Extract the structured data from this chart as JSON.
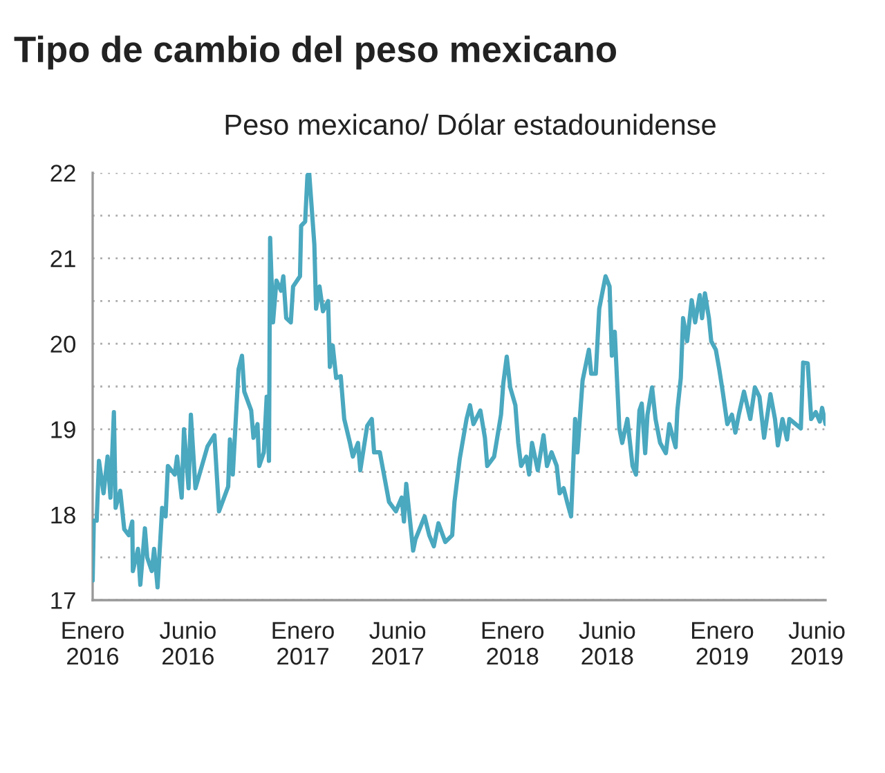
{
  "chart_data": {
    "type": "line",
    "title": "Tipo de cambio del peso mexicano",
    "subtitle": "Peso mexicano/ Dólar estadounidense",
    "x": [
      "2016-01-01",
      "2016-01-03",
      "2016-01-08",
      "2016-01-12",
      "2016-01-20",
      "2016-01-27",
      "2016-02-01",
      "2016-02-07",
      "2016-02-10",
      "2016-02-18",
      "2016-02-25",
      "2016-03-04",
      "2016-03-10",
      "2016-03-11",
      "2016-03-20",
      "2016-03-24",
      "2016-04-01",
      "2016-04-05",
      "2016-04-13",
      "2016-04-17",
      "2016-04-23",
      "2016-05-01",
      "2016-05-07",
      "2016-05-11",
      "2016-05-23",
      "2016-05-27",
      "2016-06-04",
      "2016-06-08",
      "2016-06-16",
      "2016-06-20",
      "2016-06-28",
      "2016-07-19",
      "2016-07-31",
      "2016-08-08",
      "2016-08-24",
      "2016-08-27",
      "2016-09-01",
      "2016-09-11",
      "2016-09-17",
      "2016-09-21",
      "2016-10-03",
      "2016-10-07",
      "2016-10-14",
      "2016-10-17",
      "2016-10-25",
      "2016-10-30",
      "2016-11-03",
      "2016-11-05",
      "2016-11-10",
      "2016-11-16",
      "2016-11-24",
      "2016-11-28",
      "2016-12-03",
      "2016-12-11",
      "2016-12-15",
      "2016-12-27",
      "2016-12-29",
      "2017-01-05",
      "2017-01-09",
      "2017-01-12",
      "2017-01-21",
      "2017-01-24",
      "2017-01-30",
      "2017-02-05",
      "2017-02-14",
      "2017-02-17",
      "2017-02-22",
      "2017-02-28",
      "2017-03-08",
      "2017-03-14",
      "2017-03-24",
      "2017-03-29",
      "2017-04-07",
      "2017-04-11",
      "2017-04-23",
      "2017-05-01",
      "2017-05-05",
      "2017-05-15",
      "2017-05-23",
      "2017-05-31",
      "2017-06-12",
      "2017-06-22",
      "2017-06-26",
      "2017-06-30",
      "2017-07-12",
      "2017-07-16",
      "2017-08-01",
      "2017-08-09",
      "2017-08-17",
      "2017-08-25",
      "2017-09-06",
      "2017-09-18",
      "2017-09-22",
      "2017-10-01",
      "2017-10-13",
      "2017-10-19",
      "2017-10-25",
      "2017-11-06",
      "2017-11-14",
      "2017-11-18",
      "2017-11-30",
      "2017-12-12",
      "2017-12-16",
      "2017-12-22",
      "2017-12-28",
      "2018-01-06",
      "2018-01-11",
      "2018-01-16",
      "2018-01-25",
      "2018-01-30",
      "2018-02-04",
      "2018-02-14",
      "2018-02-24",
      "2018-03-02",
      "2018-03-10",
      "2018-03-19",
      "2018-03-24",
      "2018-03-31",
      "2018-04-06",
      "2018-04-13",
      "2018-04-20",
      "2018-04-24",
      "2018-05-03",
      "2018-05-14",
      "2018-05-18",
      "2018-05-26",
      "2018-06-01",
      "2018-06-07",
      "2018-06-12",
      "2018-06-19",
      "2018-06-23",
      "2018-06-28",
      "2018-07-06",
      "2018-07-11",
      "2018-07-20",
      "2018-07-29",
      "2018-08-04",
      "2018-08-10",
      "2018-08-14",
      "2018-08-20",
      "2018-08-24",
      "2018-09-01",
      "2018-09-07",
      "2018-09-15",
      "2018-09-25",
      "2018-10-01",
      "2018-10-12",
      "2018-10-15",
      "2018-10-21",
      "2018-10-25",
      "2018-11-01",
      "2018-11-09",
      "2018-11-15",
      "2018-11-23",
      "2018-11-27",
      "2018-12-02",
      "2018-12-09",
      "2018-12-13",
      "2018-12-21",
      "2018-12-27",
      "2019-01-02",
      "2019-01-10",
      "2019-01-18",
      "2019-01-24",
      "2019-01-30",
      "2019-02-08",
      "2019-02-19",
      "2019-02-27",
      "2019-03-07",
      "2019-03-15",
      "2019-03-26",
      "2019-04-03",
      "2019-04-08",
      "2019-04-16",
      "2019-04-24",
      "2019-04-28",
      "2019-05-18",
      "2019-05-22",
      "2019-05-30",
      "2019-06-05",
      "2019-06-13",
      "2019-06-20",
      "2019-06-24",
      "2019-06-30"
    ],
    "series": [
      {
        "color": "#4aa8bf",
        "values": [
          17.23,
          17.93,
          17.93,
          18.63,
          18.25,
          18.68,
          18.2,
          19.2,
          18.08,
          18.28,
          17.83,
          17.76,
          17.92,
          17.34,
          17.6,
          17.18,
          17.84,
          17.5,
          17.34,
          17.6,
          17.15,
          18.08,
          17.98,
          18.57,
          18.47,
          18.68,
          18.2,
          19.0,
          18.31,
          19.17,
          18.31,
          18.8,
          18.93,
          18.04,
          18.33,
          18.88,
          18.47,
          19.7,
          19.86,
          19.44,
          19.22,
          18.9,
          19.06,
          18.57,
          18.73,
          19.38,
          18.63,
          21.24,
          20.25,
          20.74,
          20.62,
          20.79,
          20.3,
          20.25,
          20.67,
          20.79,
          21.38,
          21.43,
          21.97,
          22.0,
          21.16,
          20.41,
          20.67,
          20.38,
          20.5,
          19.73,
          19.98,
          19.6,
          19.62,
          19.12,
          18.84,
          18.68,
          18.84,
          18.52,
          19.04,
          19.12,
          18.73,
          18.73,
          18.44,
          18.15,
          18.04,
          18.2,
          17.92,
          18.36,
          17.58,
          17.71,
          17.98,
          17.76,
          17.63,
          17.9,
          17.68,
          17.76,
          18.15,
          18.65,
          19.12,
          19.28,
          19.06,
          19.22,
          18.9,
          18.57,
          18.68,
          19.17,
          19.54,
          19.85,
          19.49,
          19.28,
          18.84,
          18.57,
          18.68,
          18.47,
          18.84,
          18.52,
          18.93,
          18.57,
          18.73,
          18.57,
          18.25,
          18.31,
          18.15,
          17.98,
          19.12,
          18.73,
          19.57,
          19.93,
          19.65,
          19.65,
          20.41,
          20.62,
          20.79,
          20.67,
          19.86,
          20.14,
          19.01,
          18.84,
          19.12,
          18.57,
          18.47,
          19.22,
          19.3,
          18.72,
          19.17,
          19.49,
          19.12,
          18.84,
          18.72,
          19.06,
          18.79,
          19.22,
          19.6,
          20.3,
          20.03,
          20.51,
          20.25,
          20.57,
          20.3,
          20.59,
          20.3,
          20.03,
          19.93,
          19.7,
          19.44,
          19.06,
          19.17,
          18.96,
          19.17,
          19.44,
          19.12,
          19.49,
          19.38,
          18.9,
          19.41,
          19.12,
          18.81,
          19.12,
          18.88,
          19.12,
          19.01,
          19.78,
          19.77,
          19.12,
          19.2,
          19.09,
          19.25,
          19.06
        ]
      }
    ],
    "xlim": [
      "2016-01-01",
      "2019-06-30"
    ],
    "xticks": [
      {
        "value": "2016-01-01",
        "label": "Enero\n2016"
      },
      {
        "value": "2016-06-15",
        "label": "Junio\n2016"
      },
      {
        "value": "2017-01-01",
        "label": "Enero\n2017"
      },
      {
        "value": "2017-06-15",
        "label": "Junio\n2017"
      },
      {
        "value": "2018-01-01",
        "label": "Enero\n2018"
      },
      {
        "value": "2018-06-15",
        "label": "Junio\n2018"
      },
      {
        "value": "2019-01-01",
        "label": "Enero\n2019"
      },
      {
        "value": "2019-06-15",
        "label": "Junio\n2019"
      }
    ],
    "ylim": [
      17,
      22
    ],
    "yticks": [
      17,
      {
        "value": 17.5,
        "label": null
      },
      18,
      {
        "value": 18.5,
        "label": null
      },
      19,
      {
        "value": 19.5,
        "label": null
      },
      20,
      {
        "value": 20.5,
        "label": null
      },
      21,
      {
        "value": 21.5,
        "label": null
      },
      22
    ],
    "grid": "y",
    "marker": "none",
    "line_style": "solid"
  }
}
